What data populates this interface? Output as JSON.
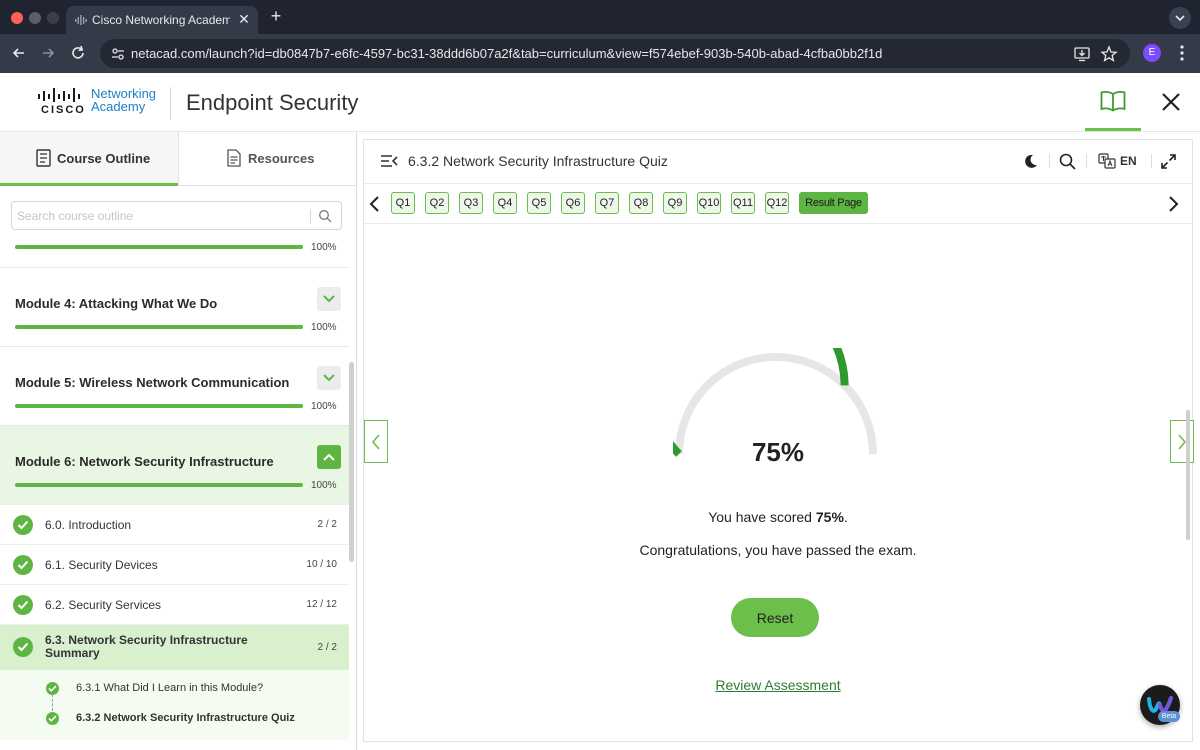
{
  "browser": {
    "tab_title": "Cisco Networking Academy: E",
    "url": "netacad.com/launch?id=db0847b7-e6fc-4597-bc31-38ddd6b07a2f&tab=curriculum&view=f574ebef-903b-540b-abad-4cfba0bb2f1d",
    "profile_initial": "E"
  },
  "header": {
    "logo_line1": "Networking",
    "logo_line2": "Academy",
    "logo_cisco": "CISCO",
    "course_title": "Endpoint Security"
  },
  "sidebar": {
    "tab_outline": "Course Outline",
    "tab_resources": "Resources",
    "search_placeholder": "Search course outline",
    "top_progress": {
      "percent": 100,
      "label": "100%"
    },
    "modules": [
      {
        "title": "Module 4: Attacking What We Do",
        "percent": 100,
        "label": "100%",
        "expanded": false
      },
      {
        "title": "Module 5: Wireless Network Communication",
        "percent": 100,
        "label": "100%",
        "expanded": false
      },
      {
        "title": "Module 6: Network Security Infrastructure",
        "percent": 100,
        "label": "100%",
        "expanded": true
      }
    ],
    "lessons": [
      {
        "title": "6.0. Introduction",
        "count": "2 / 2"
      },
      {
        "title": "6.1. Security Devices",
        "count": "10 / 10"
      },
      {
        "title": "6.2. Security Services",
        "count": "12 / 12"
      },
      {
        "title": "6.3. Network Security Infrastructure Summary",
        "count": "2 / 2"
      }
    ],
    "subitems": [
      {
        "title": "6.3.1 What Did I Learn in this Module?"
      },
      {
        "title": "6.3.2 Network Security Infrastructure Quiz"
      }
    ]
  },
  "quiz": {
    "title": "6.3.2 Network Security Infrastructure Quiz",
    "language": "EN",
    "questions": [
      "Q1",
      "Q2",
      "Q3",
      "Q4",
      "Q5",
      "Q6",
      "Q7",
      "Q8",
      "Q9",
      "Q10",
      "Q11",
      "Q12"
    ],
    "result_page_label": "Result Page",
    "score_percent": 75,
    "score_label": "75%",
    "scored_prefix": "You have scored ",
    "scored_value": "75%",
    "scored_suffix": ".",
    "congrats": "Congratulations, you have passed the exam.",
    "reset_label": "Reset",
    "review_label": "Review Assessment"
  },
  "colors": {
    "accent_green": "#6bbf4a",
    "gauge_green": "#2e9a2e",
    "gauge_track": "#e6e6e6",
    "cisco_blue": "#1d7fc4"
  },
  "icons": [
    "back-icon",
    "forward-icon",
    "reload-icon",
    "site-info-icon",
    "install-icon",
    "star-icon",
    "kebab-icon",
    "book-icon",
    "close-icon",
    "menu-collapse-icon",
    "moon-icon",
    "search-icon",
    "translate-icon",
    "expand-icon",
    "webex-icon"
  ]
}
